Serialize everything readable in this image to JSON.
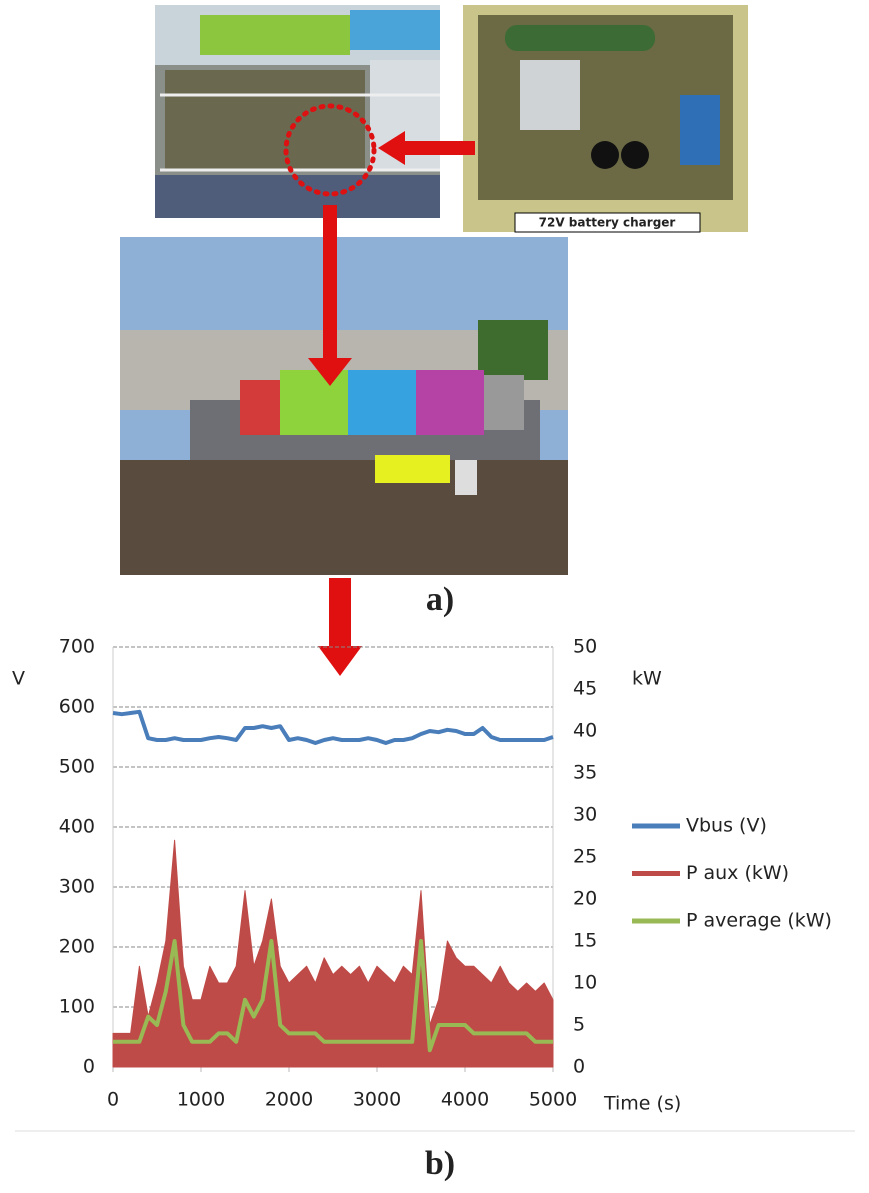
{
  "panel_a": {
    "caption_box": "72V battery charger",
    "label": "a)"
  },
  "chart_data": {
    "type": "line",
    "ylabel": "V",
    "y2label": "kW",
    "xlabel": "Time (s)",
    "x": [
      0,
      100,
      200,
      300,
      400,
      500,
      600,
      700,
      800,
      900,
      1000,
      1100,
      1200,
      1300,
      1400,
      1500,
      1600,
      1700,
      1800,
      1900,
      2000,
      2100,
      2200,
      2300,
      2400,
      2500,
      2600,
      2700,
      2800,
      2900,
      3000,
      3100,
      3200,
      3300,
      3400,
      3500,
      3600,
      3700,
      3800,
      3900,
      4000,
      4100,
      4200,
      4300,
      4400,
      4500,
      4600,
      4700,
      4800,
      4900,
      5000
    ],
    "xlim": [
      0,
      5000
    ],
    "xticks": [
      0,
      1000,
      2000,
      3000,
      4000,
      5000
    ],
    "ylim": [
      0,
      700
    ],
    "yticks": [
      0,
      100,
      200,
      300,
      400,
      500,
      600,
      700
    ],
    "y2lim": [
      0,
      50
    ],
    "y2ticks": [
      0,
      5,
      10,
      15,
      20,
      25,
      30,
      35,
      40,
      45,
      50
    ],
    "grid": true,
    "series": [
      {
        "name": "Vbus (V)",
        "color": "#4a7ebb",
        "axis": "y",
        "fill": false,
        "values": [
          590,
          588,
          590,
          592,
          548,
          545,
          545,
          548,
          545,
          545,
          545,
          548,
          550,
          548,
          545,
          565,
          565,
          568,
          565,
          568,
          545,
          548,
          545,
          540,
          545,
          548,
          545,
          545,
          545,
          548,
          545,
          540,
          545,
          545,
          548,
          555,
          560,
          558,
          562,
          560,
          555,
          555,
          565,
          550,
          545,
          545,
          545,
          545,
          545,
          545,
          550
        ]
      },
      {
        "name": "P aux (kW)",
        "color": "#be4b48",
        "axis": "y2",
        "fill": true,
        "values": [
          4,
          4,
          4,
          12,
          6,
          10,
          15,
          27,
          12,
          8,
          8,
          12,
          10,
          10,
          12,
          21,
          12,
          15,
          20,
          12,
          10,
          11,
          12,
          10,
          13,
          11,
          12,
          11,
          12,
          10,
          12,
          11,
          10,
          12,
          11,
          21,
          5,
          8,
          15,
          13,
          12,
          12,
          11,
          10,
          12,
          10,
          9,
          10,
          9,
          10,
          8
        ]
      },
      {
        "name": "P average (kW)",
        "color": "#98b954",
        "axis": "y2",
        "fill": false,
        "values": [
          3,
          3,
          3,
          3,
          6,
          5,
          9,
          15,
          5,
          3,
          3,
          3,
          4,
          4,
          3,
          8,
          6,
          8,
          15,
          5,
          4,
          4,
          4,
          4,
          3,
          3,
          3,
          3,
          3,
          3,
          3,
          3,
          3,
          3,
          3,
          15,
          2,
          5,
          5,
          5,
          5,
          4,
          4,
          4,
          4,
          4,
          4,
          4,
          3,
          3,
          3
        ]
      }
    ]
  },
  "panel_b": {
    "label": "b)"
  }
}
